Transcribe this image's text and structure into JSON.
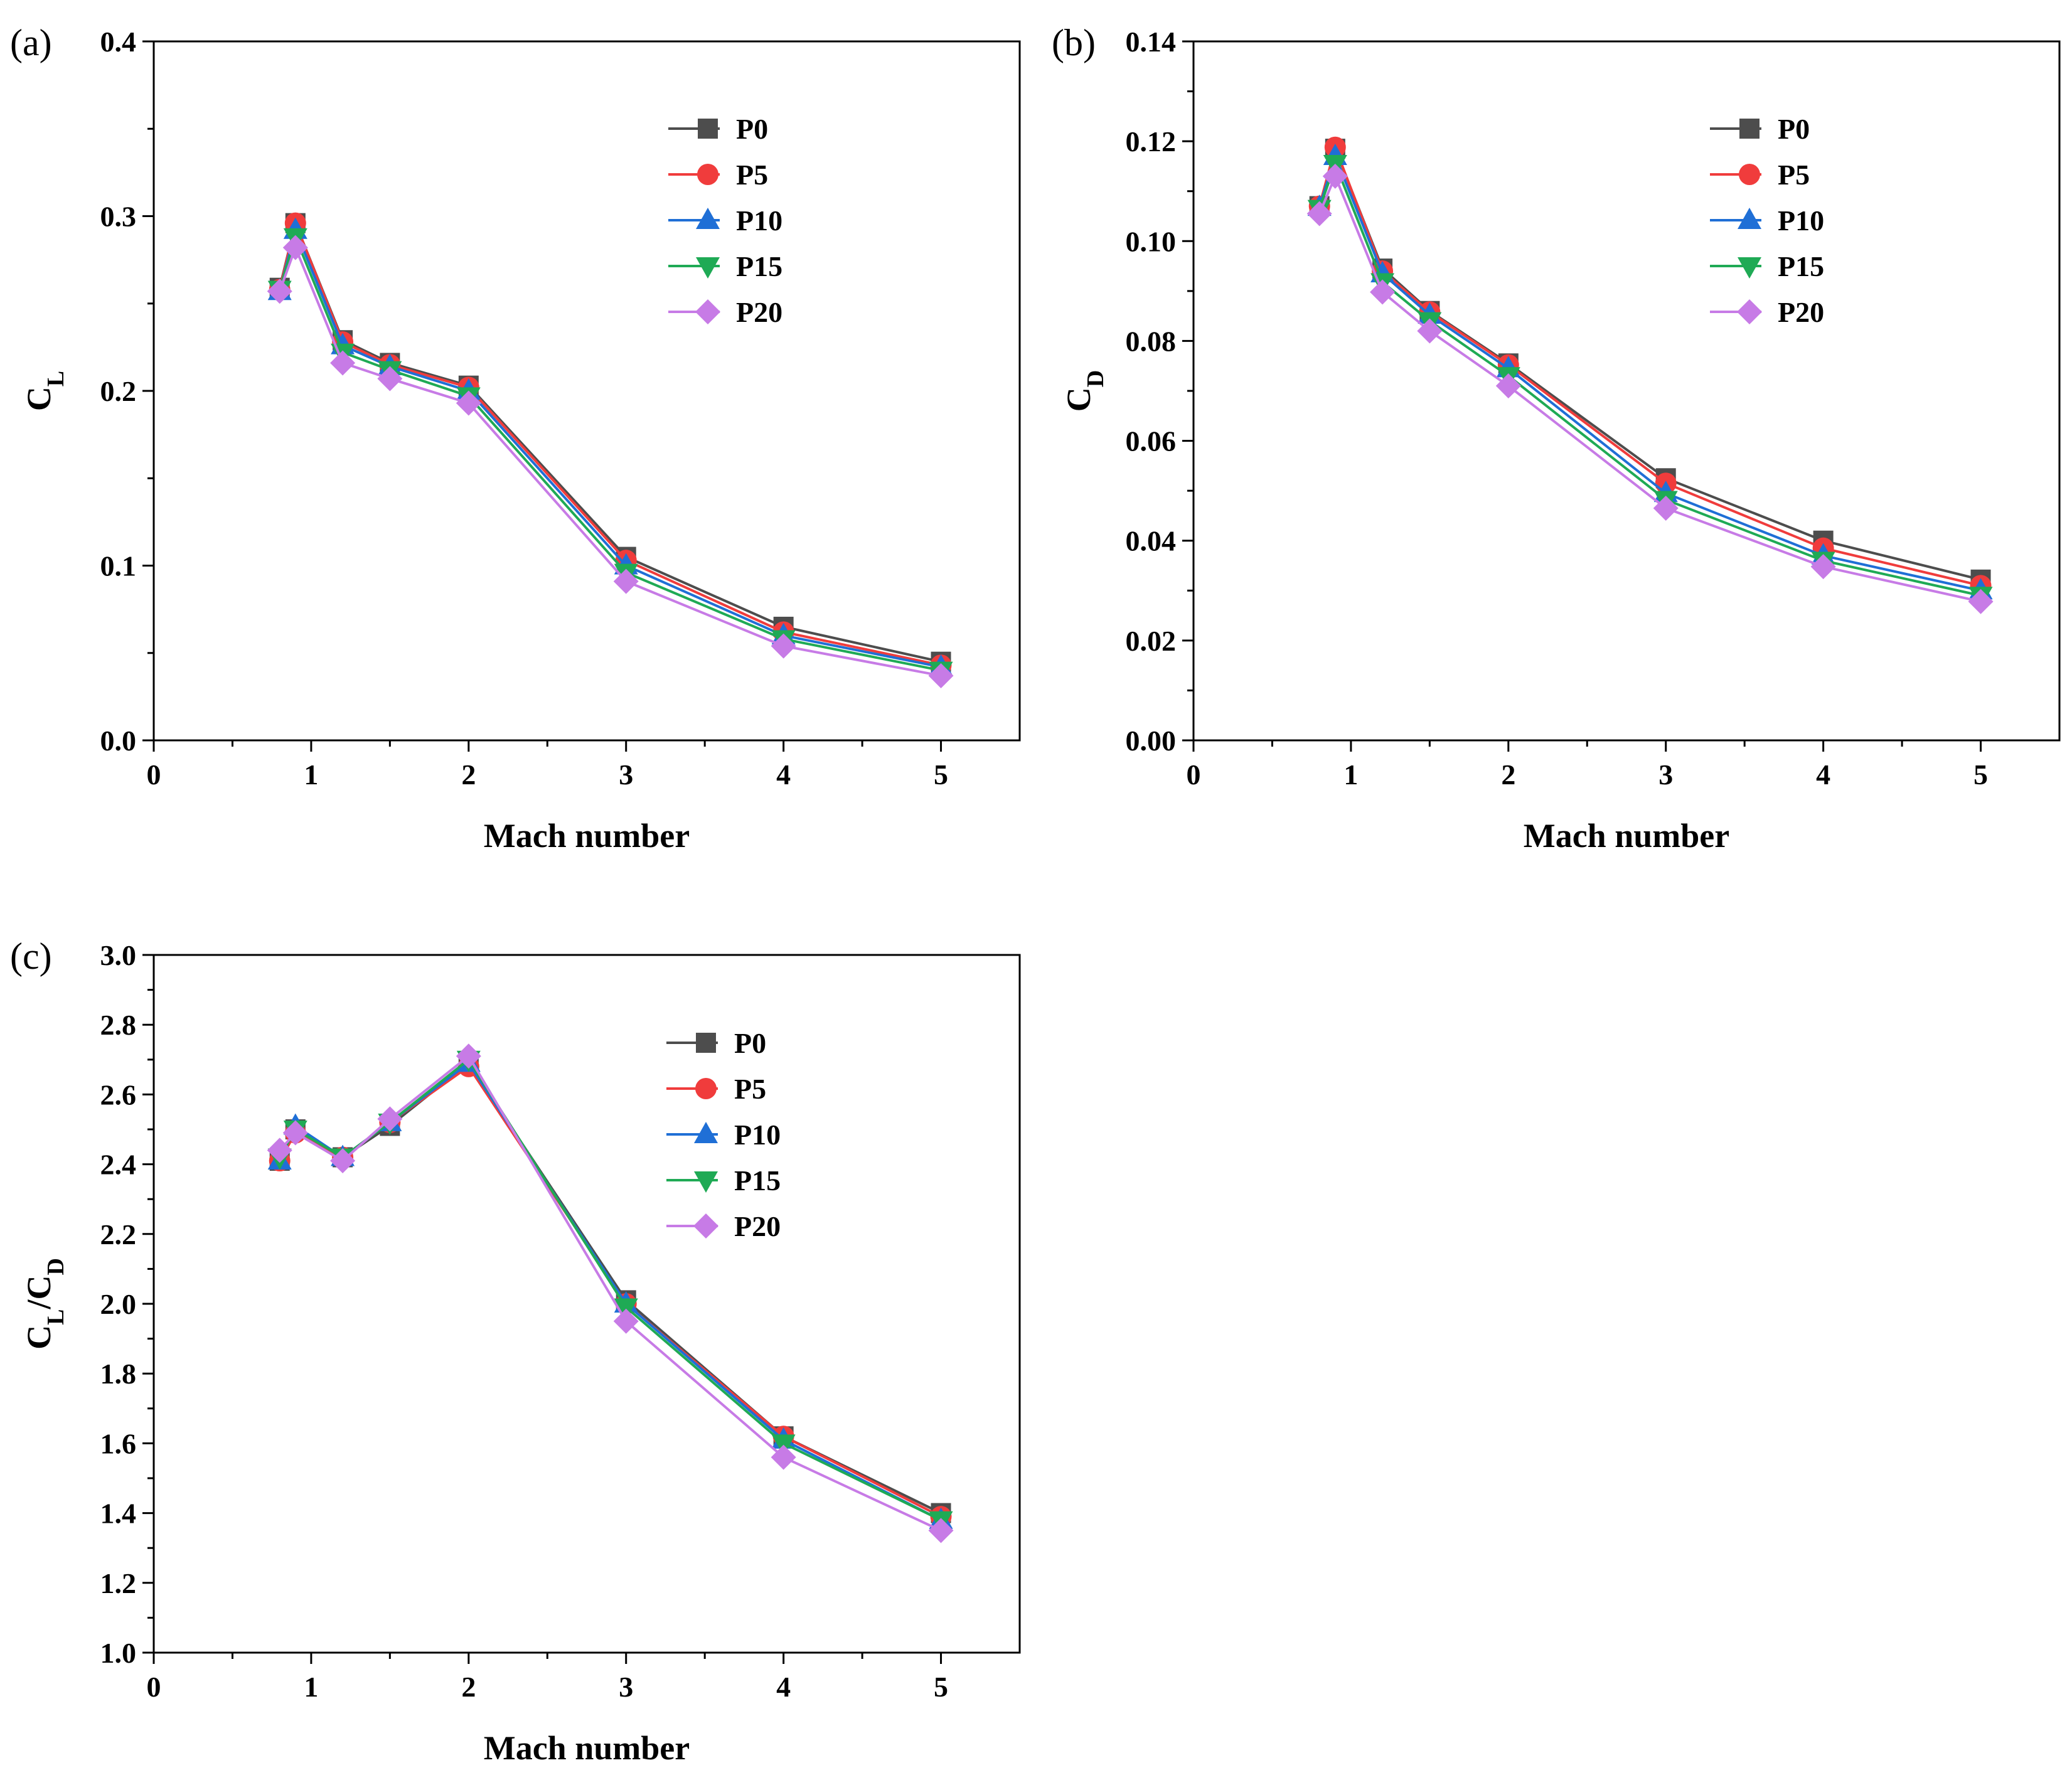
{
  "chart_data": [
    {
      "type": "line",
      "panel_label": "(a)",
      "xlabel": "Mach number",
      "ylabel_main": "C",
      "ylabel_sub": "L",
      "xlim": [
        0,
        5.5
      ],
      "ylim": [
        0,
        0.4
      ],
      "xticks": [
        0,
        1,
        2,
        3,
        4,
        5
      ],
      "xtick_labels": [
        "0",
        "1",
        "2",
        "3",
        "4",
        "5"
      ],
      "yticks": [
        0,
        0.1,
        0.2,
        0.3,
        0.4
      ],
      "ytick_labels": [
        "0.0",
        "0.1",
        "0.2",
        "0.3",
        "0.4"
      ],
      "legend_position": "upper-right",
      "x": [
        0.8,
        0.9,
        1.2,
        1.5,
        2,
        3,
        4,
        5
      ],
      "series": [
        {
          "name": "P0",
          "color": "#4d4d4d",
          "marker": "square",
          "values": [
            0.259,
            0.296,
            0.229,
            0.216,
            0.203,
            0.105,
            0.065,
            0.045
          ]
        },
        {
          "name": "P5",
          "color": "#f03c3c",
          "marker": "circle",
          "values": [
            0.258,
            0.296,
            0.228,
            0.215,
            0.202,
            0.103,
            0.062,
            0.043
          ]
        },
        {
          "name": "P10",
          "color": "#1f6fd6",
          "marker": "triangle-up",
          "values": [
            0.257,
            0.292,
            0.226,
            0.214,
            0.2,
            0.1,
            0.06,
            0.042
          ]
        },
        {
          "name": "P15",
          "color": "#1faa55",
          "marker": "triangle-down",
          "values": [
            0.258,
            0.288,
            0.222,
            0.212,
            0.197,
            0.096,
            0.058,
            0.04
          ]
        },
        {
          "name": "P20",
          "color": "#c77be6",
          "marker": "diamond",
          "values": [
            0.257,
            0.282,
            0.216,
            0.207,
            0.193,
            0.091,
            0.054,
            0.037
          ]
        }
      ]
    },
    {
      "type": "line",
      "panel_label": "(b)",
      "xlabel": "Mach number",
      "ylabel_main": "C",
      "ylabel_sub": "D",
      "xlim": [
        0,
        5.5
      ],
      "ylim": [
        0,
        0.14
      ],
      "xticks": [
        0,
        1,
        2,
        3,
        4,
        5
      ],
      "xtick_labels": [
        "0",
        "1",
        "2",
        "3",
        "4",
        "5"
      ],
      "yticks": [
        0,
        0.02,
        0.04,
        0.06,
        0.08,
        0.1,
        0.12,
        0.14
      ],
      "ytick_labels": [
        "0.00",
        "0.02",
        "0.04",
        "0.06",
        "0.08",
        "0.10",
        "0.12",
        "0.14"
      ],
      "legend_position": "upper-right",
      "x": [
        0.8,
        0.9,
        1.2,
        1.5,
        2,
        3,
        4,
        5
      ],
      "series": [
        {
          "name": "P0",
          "color": "#4d4d4d",
          "marker": "square",
          "values": [
            0.107,
            0.1185,
            0.0945,
            0.086,
            0.0755,
            0.0525,
            0.04,
            0.0322
          ]
        },
        {
          "name": "P5",
          "color": "#f03c3c",
          "marker": "circle",
          "values": [
            0.107,
            0.1188,
            0.094,
            0.0858,
            0.0752,
            0.0515,
            0.0385,
            0.031
          ]
        },
        {
          "name": "P10",
          "color": "#1f6fd6",
          "marker": "triangle-up",
          "values": [
            0.1068,
            0.117,
            0.0935,
            0.0852,
            0.0745,
            0.0495,
            0.037,
            0.03
          ]
        },
        {
          "name": "P15",
          "color": "#1faa55",
          "marker": "triangle-down",
          "values": [
            0.1065,
            0.1155,
            0.0918,
            0.084,
            0.073,
            0.0482,
            0.036,
            0.029
          ]
        },
        {
          "name": "P20",
          "color": "#c77be6",
          "marker": "diamond",
          "values": [
            0.1055,
            0.113,
            0.0898,
            0.082,
            0.071,
            0.0465,
            0.0348,
            0.0278
          ]
        }
      ]
    },
    {
      "type": "line",
      "panel_label": "(c)",
      "xlabel": "Mach number",
      "ylabel_main": "C",
      "ylabel_sub": "L",
      "ylabel_sep": "/C",
      "ylabel_sub2": "D",
      "xlim": [
        0,
        5.5
      ],
      "ylim": [
        1.0,
        3.0
      ],
      "xticks": [
        0,
        1,
        2,
        3,
        4,
        5
      ],
      "xtick_labels": [
        "0",
        "1",
        "2",
        "3",
        "4",
        "5"
      ],
      "yticks": [
        1.0,
        1.2,
        1.4,
        1.6,
        1.8,
        2.0,
        2.2,
        2.4,
        2.6,
        2.8,
        3.0
      ],
      "ytick_labels": [
        "1.0",
        "1.2",
        "1.4",
        "1.6",
        "1.8",
        "2.0",
        "2.2",
        "2.4",
        "2.6",
        "2.8",
        "3.0"
      ],
      "legend_position": "upper-right",
      "x": [
        0.8,
        0.9,
        1.2,
        1.5,
        2,
        3,
        4,
        5
      ],
      "series": [
        {
          "name": "P0",
          "color": "#4d4d4d",
          "marker": "square",
          "values": [
            2.41,
            2.5,
            2.42,
            2.51,
            2.69,
            2.01,
            1.62,
            1.4
          ]
        },
        {
          "name": "P5",
          "color": "#f03c3c",
          "marker": "circle",
          "values": [
            2.41,
            2.49,
            2.42,
            2.52,
            2.68,
            2.0,
            1.62,
            1.39
          ]
        },
        {
          "name": "P10",
          "color": "#1f6fd6",
          "marker": "triangle-up",
          "values": [
            2.41,
            2.51,
            2.42,
            2.52,
            2.69,
            2.0,
            1.61,
            1.38
          ]
        },
        {
          "name": "P15",
          "color": "#1faa55",
          "marker": "triangle-down",
          "values": [
            2.42,
            2.5,
            2.42,
            2.52,
            2.7,
            1.99,
            1.6,
            1.38
          ]
        },
        {
          "name": "P20",
          "color": "#c77be6",
          "marker": "diamond",
          "values": [
            2.44,
            2.49,
            2.41,
            2.53,
            2.71,
            1.95,
            1.56,
            1.35
          ]
        }
      ]
    }
  ]
}
